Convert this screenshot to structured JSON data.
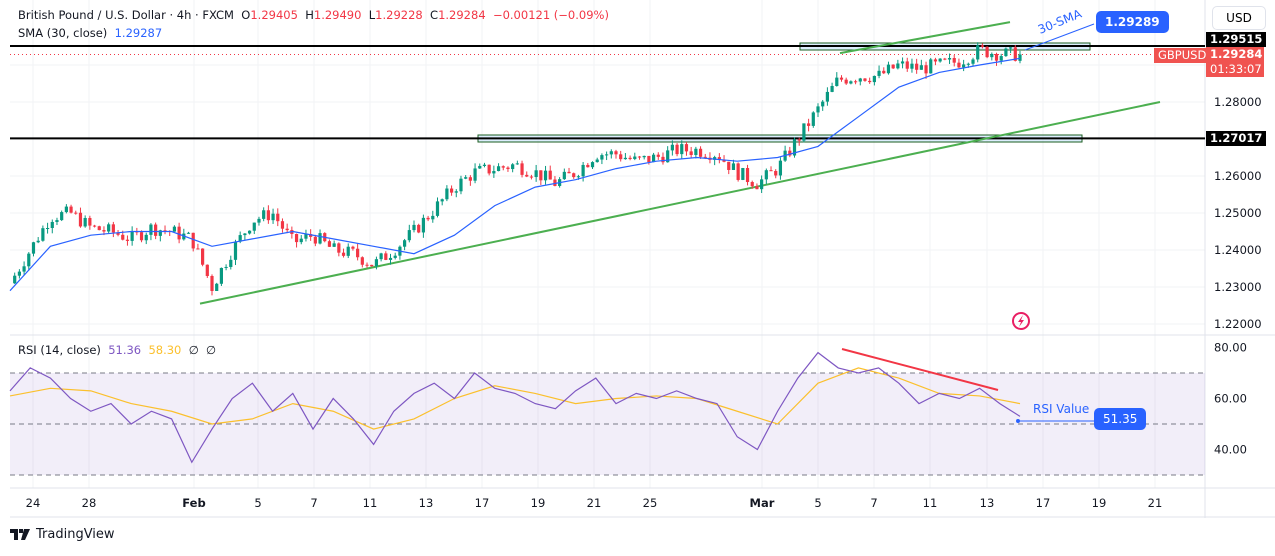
{
  "header": {
    "symbol": "British Pound / U.S. Dollar · 4h · FXCM",
    "o_label": "O",
    "o": "1.29405",
    "h_label": "H",
    "h": "1.29490",
    "l_label": "L",
    "l": "1.29228",
    "c_label": "C",
    "c": "1.29284",
    "change": "−0.00121 (−0.09%)"
  },
  "sma_legend": {
    "label": "SMA (30, close)",
    "value": "1.29287"
  },
  "rsi_legend": {
    "label": "RSI (14, close)",
    "rsi": "51.36",
    "ma": "58.30",
    "v3": "∅",
    "v4": "∅"
  },
  "currency_button": "USD",
  "price_axis": {
    "ticks": [
      "1.28000",
      "1.26000",
      "1.25000",
      "1.24000",
      "1.23000",
      "1.22000"
    ],
    "level_labels": [
      "1.29515",
      "1.27017"
    ],
    "current_price": "1.29284",
    "countdown": "01:33:07",
    "symbol_tag": "GBPUSD"
  },
  "rsi_axis": {
    "ticks": [
      "80.00",
      "60.00",
      "40.00"
    ]
  },
  "time_axis": {
    "ticks": [
      "24",
      "28",
      "Feb",
      "5",
      "7",
      "11",
      "13",
      "17",
      "19",
      "21",
      "25",
      "Mar",
      "5",
      "7",
      "11",
      "13",
      "17",
      "19",
      "21"
    ]
  },
  "annotations": {
    "sma_text": "30-SMA",
    "sma_value": "1.29289",
    "rsi_text": "RSI Value",
    "rsi_value": "51.35"
  },
  "footer": {
    "brand": "TradingView"
  },
  "colors": {
    "up": "#089981",
    "down": "#f23645",
    "sma": "#2962ff",
    "rsi": "#7e57c2",
    "rsi_ma": "#fbc02d",
    "trend": "#4caf50",
    "level": "#000000"
  },
  "chart_data": {
    "type": "candlestick",
    "price_range": [
      1.22,
      1.3
    ],
    "levels": [
      1.29515,
      1.27017
    ],
    "support_trendline": [
      1.2255,
      1.28
    ],
    "upper_trendline": [
      1.2932,
      1.3016
    ],
    "closes": [
      1.231,
      1.24,
      1.249,
      1.25,
      1.246,
      1.245,
      1.243,
      1.246,
      1.245,
      1.243,
      1.23,
      1.24,
      1.248,
      1.25,
      1.242,
      1.244,
      1.24,
      1.239,
      1.236,
      1.24,
      1.245,
      1.251,
      1.257,
      1.261,
      1.262,
      1.263,
      1.261,
      1.258,
      1.261,
      1.266,
      1.266,
      1.264,
      1.265,
      1.267,
      1.267,
      1.266,
      1.261,
      1.258,
      1.262,
      1.27,
      1.278,
      1.286,
      1.287,
      1.287,
      1.29,
      1.289,
      1.29,
      1.291,
      1.294,
      1.293,
      1.2928
    ],
    "sma30": [
      1.229,
      1.241,
      1.244,
      1.245,
      1.245,
      1.241,
      1.243,
      1.245,
      1.243,
      1.241,
      1.239,
      1.244,
      1.252,
      1.257,
      1.259,
      1.262,
      1.264,
      1.265,
      1.264,
      1.265,
      1.268,
      1.276,
      1.284,
      1.288,
      1.29,
      1.2918
    ],
    "rsi": [
      63,
      72,
      68,
      60,
      55,
      58,
      50,
      55,
      52,
      35,
      48,
      60,
      66,
      55,
      62,
      48,
      60,
      52,
      42,
      55,
      62,
      66,
      60,
      70,
      64,
      62,
      58,
      56,
      63,
      68,
      58,
      62,
      60,
      63,
      60,
      58,
      45,
      40,
      55,
      68,
      78,
      72,
      70,
      72,
      66,
      58,
      62,
      60,
      64,
      58,
      53
    ],
    "rsi_ma": [
      61,
      64,
      63,
      58,
      55,
      50,
      52,
      58,
      55,
      48,
      52,
      60,
      65,
      62,
      58,
      60,
      61,
      60,
      55,
      50,
      66,
      72,
      68,
      62,
      61,
      58
    ],
    "rsi_range": [
      30,
      85
    ],
    "rsi_bands": [
      70,
      50,
      30
    ]
  }
}
